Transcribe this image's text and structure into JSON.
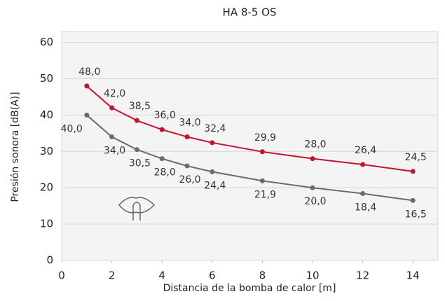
{
  "chart_data": {
    "type": "line",
    "title": "HA 8-5 OS",
    "xlabel": "Distancia de la bomba de calor [m]",
    "ylabel": "Presión sonora [dB(A)]",
    "x": [
      1,
      2,
      3,
      4,
      5,
      6,
      8,
      10,
      12,
      14
    ],
    "series": [
      {
        "name": "rojo",
        "color": "#c41230",
        "values": [
          48,
          42,
          38.5,
          36,
          34,
          32.4,
          29.9,
          28,
          26.4,
          24.5
        ],
        "value_labels": [
          "48,0",
          "42,0",
          "38,5",
          "36,0",
          "34,0",
          "32,4",
          "29,9",
          "28,0",
          "26,4",
          "24,5"
        ]
      },
      {
        "name": "gris",
        "color": "#6b6b6b",
        "values": [
          40,
          34,
          30.5,
          28,
          26,
          24.4,
          21.9,
          20,
          18.4,
          16.5
        ],
        "value_labels": [
          "40,0",
          "34,0",
          "30,5",
          "28,0",
          "26,0",
          "24,4",
          "21,9",
          "20,0",
          "18,4",
          "16,5"
        ]
      }
    ],
    "xlim": [
      0,
      15
    ],
    "xticks": [
      0,
      2,
      4,
      6,
      8,
      10,
      12,
      14
    ],
    "ylim": [
      0,
      63
    ],
    "yticks": [
      0,
      10,
      20,
      30,
      40,
      50,
      60
    ],
    "grid": true
  }
}
